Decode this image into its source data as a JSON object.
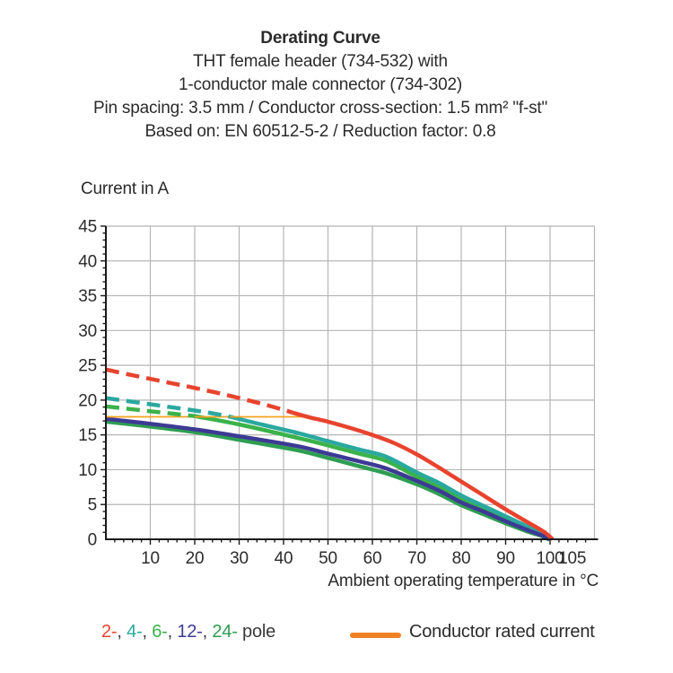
{
  "header": {
    "title": "Derating Curve",
    "subtitle_lines": [
      "THT female header (734-532) with",
      "1-conductor male connector (734-302)",
      "Pin spacing: 3.5 mm / Conductor cross-section: 1.5 mm² \"f-st\"",
      "Based on: EN 60512-5-2 / Reduction factor: 0.8"
    ]
  },
  "chart_data": {
    "type": "line",
    "title": "Derating Curve",
    "ylabel": "Current in A",
    "xlabel": "Ambient operating temperature in °C",
    "xlim": [
      0,
      110
    ],
    "ylim": [
      0,
      45
    ],
    "grid": true,
    "x_gridline_step": 10,
    "y_gridline_step": 5,
    "x_minor_tick_step": 2,
    "y_minor_tick_step": 1,
    "x_tick_labels": [
      10,
      20,
      30,
      40,
      50,
      60,
      70,
      80,
      90,
      100,
      105
    ],
    "y_tick_labels": [
      0,
      5,
      10,
      15,
      20,
      25,
      30,
      35,
      40,
      45
    ],
    "series": [
      {
        "name": "24-pole",
        "color": "#2f9e52",
        "dash": false,
        "width": 4.5,
        "points": [
          [
            0,
            16.9
          ],
          [
            10,
            16.2
          ],
          [
            20,
            15.4
          ],
          [
            30,
            14.3
          ],
          [
            43,
            12.8
          ],
          [
            50,
            11.7
          ],
          [
            57,
            10.5
          ],
          [
            63,
            9.5
          ],
          [
            70,
            7.9
          ],
          [
            75,
            6.5
          ],
          [
            80,
            4.9
          ],
          [
            85,
            3.6
          ],
          [
            90,
            2.3
          ],
          [
            95,
            1.1
          ],
          [
            98,
            0.5
          ],
          [
            99.7,
            0
          ]
        ]
      },
      {
        "name": "6-pole",
        "color": "#3bb24a",
        "dash": false,
        "width": 4.5,
        "points": [
          [
            20,
            17.7
          ],
          [
            30,
            16.5
          ],
          [
            43,
            14.6
          ],
          [
            50,
            13.5
          ],
          [
            57,
            12.3
          ],
          [
            63,
            11.3
          ],
          [
            70,
            9.0
          ],
          [
            75,
            7.6
          ],
          [
            80,
            5.8
          ],
          [
            85,
            4.4
          ],
          [
            90,
            2.9
          ],
          [
            95,
            1.5
          ],
          [
            98,
            0.7
          ],
          [
            100,
            0
          ]
        ]
      },
      {
        "name": "4-pole",
        "color": "#2aa89f",
        "dash": false,
        "width": 4.5,
        "points": [
          [
            28,
            17.6
          ],
          [
            35,
            16.5
          ],
          [
            43,
            15.3
          ],
          [
            50,
            14.1
          ],
          [
            57,
            12.9
          ],
          [
            63,
            11.9
          ],
          [
            70,
            9.6
          ],
          [
            75,
            8.1
          ],
          [
            80,
            6.3
          ],
          [
            85,
            4.8
          ],
          [
            90,
            3.3
          ],
          [
            95,
            1.8
          ],
          [
            98,
            0.9
          ],
          [
            100.2,
            0
          ]
        ]
      },
      {
        "name": "12-pole",
        "color": "#3d3a95",
        "dash": false,
        "width": 4.5,
        "points": [
          [
            0,
            17.3
          ],
          [
            10,
            16.6
          ],
          [
            20,
            15.8
          ],
          [
            30,
            14.8
          ],
          [
            43,
            13.4
          ],
          [
            50,
            12.3
          ],
          [
            57,
            11.2
          ],
          [
            63,
            10.2
          ],
          [
            70,
            8.4
          ],
          [
            75,
            7.0
          ],
          [
            80,
            5.3
          ],
          [
            85,
            4.0
          ],
          [
            90,
            2.6
          ],
          [
            95,
            1.3
          ],
          [
            98,
            0.6
          ],
          [
            99.9,
            0
          ]
        ]
      },
      {
        "name": "Conductor rated current",
        "color": "#f6a21c",
        "dash": false,
        "width": 1.8,
        "points": [
          [
            0,
            17.6
          ],
          [
            46,
            17.6
          ]
        ]
      },
      {
        "name": "4-pole above rated current",
        "color": "#2aa89f",
        "dash": true,
        "width": 4.5,
        "points": [
          [
            0,
            20.3
          ],
          [
            10,
            19.4
          ],
          [
            20,
            18.5
          ],
          [
            24,
            18.1
          ],
          [
            28,
            17.6
          ]
        ]
      },
      {
        "name": "6-pole above rated current",
        "color": "#3bb24a",
        "dash": true,
        "width": 4.5,
        "points": [
          [
            0,
            19.1
          ],
          [
            10,
            18.4
          ],
          [
            20,
            17.7
          ]
        ]
      },
      {
        "name": "2-pole above rated current",
        "color": "#e8432e",
        "dash": true,
        "width": 4.5,
        "points": [
          [
            0,
            24.4
          ],
          [
            5,
            23.7
          ],
          [
            10,
            23.05
          ],
          [
            15,
            22.4
          ],
          [
            20,
            21.75
          ],
          [
            25,
            21.05
          ],
          [
            30,
            20.3
          ],
          [
            35,
            19.5
          ],
          [
            40,
            18.6
          ],
          [
            42,
            18.2
          ]
        ]
      },
      {
        "name": "2-pole",
        "color": "#e8432e",
        "dash": false,
        "width": 4.5,
        "points": [
          [
            42,
            18.2
          ],
          [
            46,
            17.5
          ],
          [
            50,
            16.9
          ],
          [
            55,
            16.0
          ],
          [
            60,
            15.0
          ],
          [
            65,
            13.8
          ],
          [
            70,
            12.2
          ],
          [
            75,
            10.3
          ],
          [
            80,
            8.3
          ],
          [
            85,
            6.3
          ],
          [
            90,
            4.3
          ],
          [
            94,
            2.8
          ],
          [
            97,
            1.7
          ],
          [
            99,
            0.9
          ],
          [
            100.6,
            0
          ]
        ]
      }
    ],
    "legend_position": "bottom"
  },
  "legend": {
    "pole_parts": [
      {
        "text": "2-",
        "color": "#e8432e"
      },
      {
        "text": ", ",
        "color": "#3a3a3a"
      },
      {
        "text": "4-",
        "color": "#2aa89f"
      },
      {
        "text": ", ",
        "color": "#3a3a3a"
      },
      {
        "text": "6-",
        "color": "#3bb24a"
      },
      {
        "text": ", ",
        "color": "#3a3a3a"
      },
      {
        "text": "12-",
        "color": "#3d3a95"
      },
      {
        "text": ", ",
        "color": "#3a3a3a"
      },
      {
        "text": "24-",
        "color": "#2f9e52"
      },
      {
        "text": " pole",
        "color": "#3a3a3a"
      }
    ],
    "conductor": {
      "label": "Conductor rated current",
      "color": "#ef8122"
    }
  },
  "style_colors": {
    "axis": "#1a1a1a",
    "grid": "#b5b5b5",
    "text": "#2b2b2b"
  }
}
